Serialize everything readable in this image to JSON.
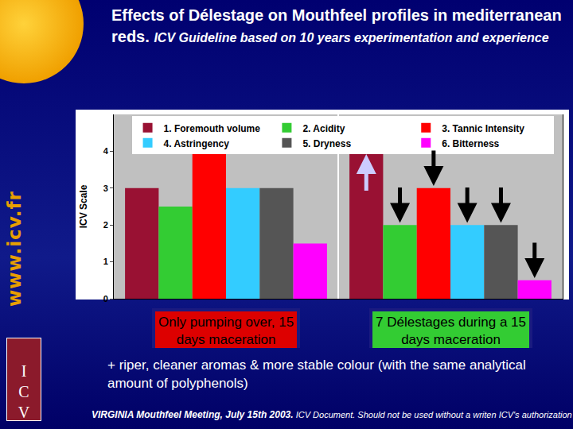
{
  "chart_data": {
    "type": "bar",
    "title": "Effects of Délestage on Mouthfeel profiles in mediterranean reds.",
    "subtitle": "ICV Guideline based on 10 years experimentation and experience",
    "categories": [
      "Only pumping over, 15 days maceration",
      "7 Délestages during a 15 days maceration"
    ],
    "series": [
      {
        "name": "1. Foremouth volume",
        "color": "#991133",
        "values": [
          3,
          4
        ]
      },
      {
        "name": "2. Acidity",
        "color": "#33cc33",
        "values": [
          2.5,
          2
        ]
      },
      {
        "name": "3. Tannic Intensity",
        "color": "#ff0000",
        "values": [
          4,
          3
        ]
      },
      {
        "name": "4. Astringency",
        "color": "#33ccff",
        "values": [
          3,
          2
        ]
      },
      {
        "name": "5. Dryness",
        "color": "#555555",
        "values": [
          3,
          2
        ]
      },
      {
        "name": "6. Bitterness",
        "color": "#ff00ff",
        "values": [
          1.5,
          0.5
        ]
      }
    ],
    "y_label": "ICV Scale",
    "ylim": [
      0,
      5
    ],
    "yticks": [
      0,
      1,
      2,
      3,
      4
    ],
    "grid": false,
    "legend": "top",
    "tick_labels": "y"
  },
  "slide": {
    "url": "www.icv.fr",
    "note": "+ riper, cleaner aromas & more stable colour (with the same analytical amount of polyphenols)",
    "footer_event": "VIRGINIA Mouthfeel Meeting, July 15th 2003.",
    "footer_notice": "ICV Document. Should not be used without a writen ICV's authorization",
    "logo": "ICV"
  }
}
